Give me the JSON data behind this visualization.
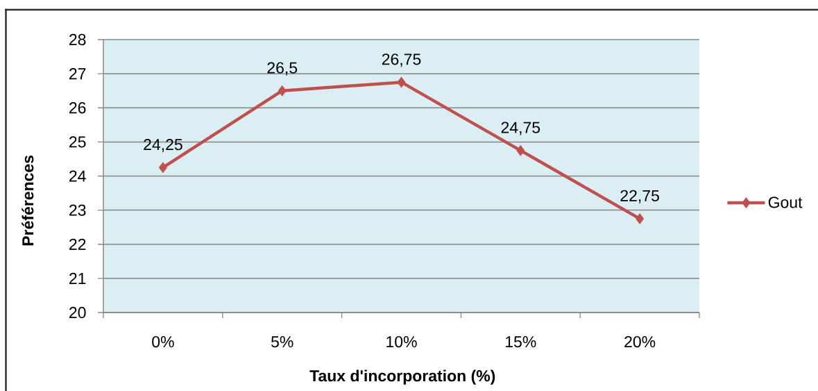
{
  "chart_data": {
    "type": "line",
    "xlabel": "Taux d'incorporation (%)",
    "ylabel": "Préférences",
    "categories": [
      "0%",
      "5%",
      "10%",
      "15%",
      "20%"
    ],
    "series": [
      {
        "name": "Gout",
        "color": "#c0504d",
        "values": [
          24.25,
          26.5,
          26.75,
          24.75,
          22.75
        ],
        "value_labels": [
          "24,25",
          "26,5",
          "26,75",
          "24,75",
          "22,75"
        ]
      }
    ],
    "ylim": [
      20,
      28
    ],
    "yticks": [
      20,
      21,
      22,
      23,
      24,
      25,
      26,
      27,
      28
    ],
    "grid": "y",
    "legend": "right",
    "marker": "diamond",
    "line_style": "solid"
  }
}
